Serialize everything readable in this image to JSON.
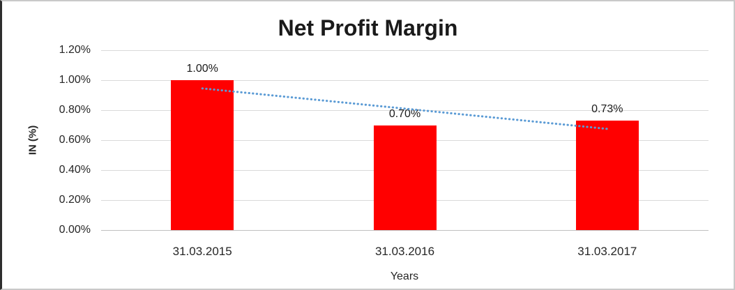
{
  "chart_data": {
    "type": "bar",
    "title": "Net Profit Margin",
    "categories": [
      "31.03.2015",
      "31.03.2016",
      "31.03.2017"
    ],
    "values": [
      1.0,
      0.7,
      0.73
    ],
    "data_labels": [
      "1.00%",
      "0.70%",
      "0.73%"
    ],
    "xlabel": "Years",
    "ylabel": "IN (%)",
    "ylim": [
      0,
      1.2
    ],
    "yticks": [
      {
        "value": 0.0,
        "label": "0.00%"
      },
      {
        "value": 0.2,
        "label": "0.20%"
      },
      {
        "value": 0.4,
        "label": "0.40%"
      },
      {
        "value": 0.6,
        "label": "0.60%"
      },
      {
        "value": 0.8,
        "label": "0.80%"
      },
      {
        "value": 1.0,
        "label": "1.00%"
      },
      {
        "value": 1.2,
        "label": "1.20%"
      }
    ],
    "grid": true,
    "legend": "none",
    "bar_color": "#FF0000",
    "text_color": "#262626",
    "gridline_color": "#d9d9d9",
    "trendline": {
      "type": "linear",
      "style": "dotted",
      "color": "#5B9BD5",
      "endpoints": [
        0.945,
        0.675
      ]
    }
  }
}
